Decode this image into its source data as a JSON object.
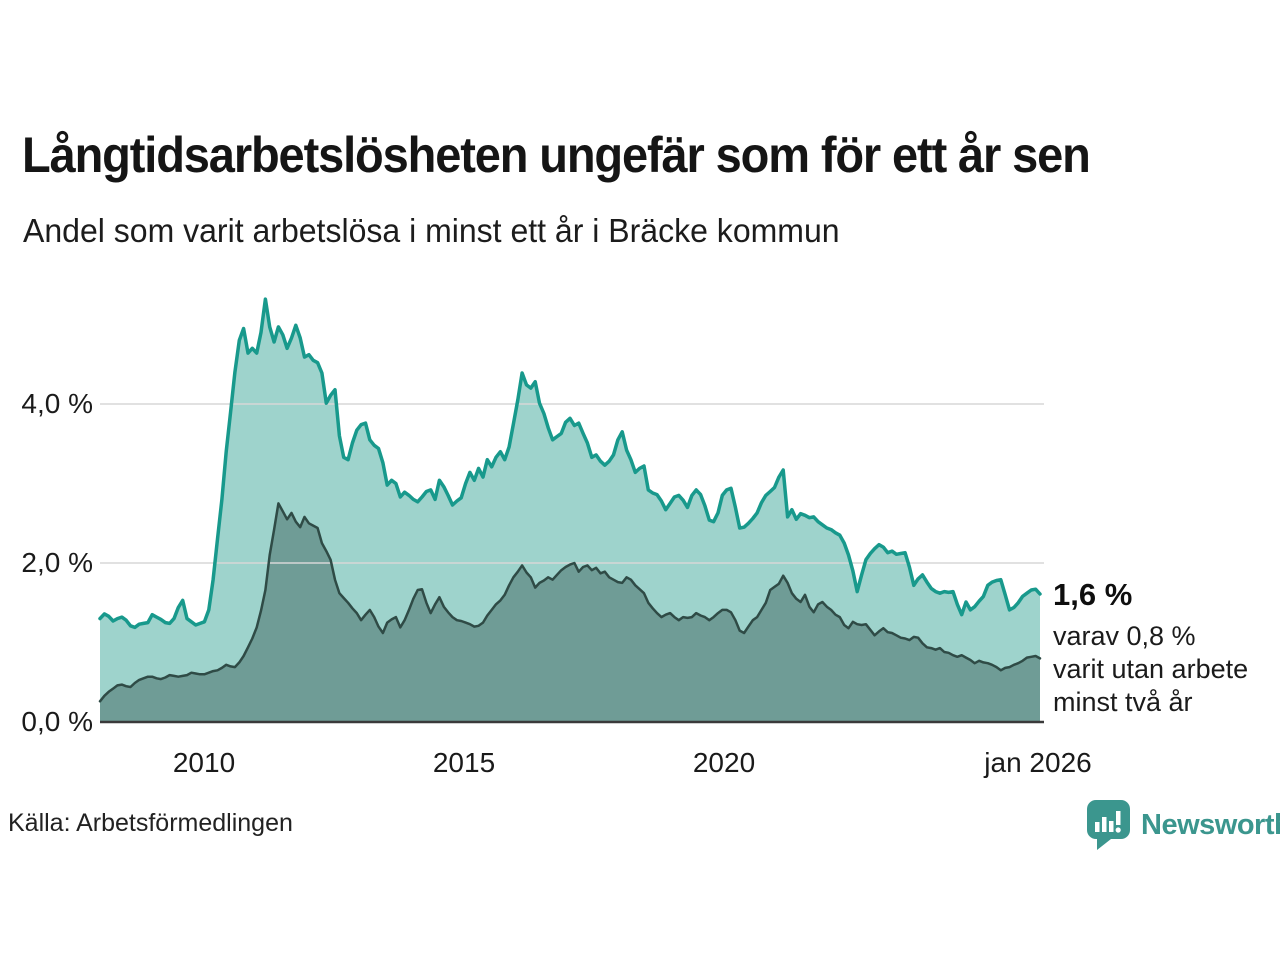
{
  "chart_data": {
    "type": "area",
    "title": "Långtidsarbetslösheten ungefär som för ett år sen",
    "subtitle": "Andel som varit arbetslösa i minst ett år i Bräcke kommun",
    "source": "Källa: Arbetsförmedlingen",
    "x_range": {
      "start": "jan 2008",
      "end": "jan 2026",
      "points_per_year": 12
    },
    "ylim": [
      0,
      5.5
    ],
    "grid": true,
    "y_ticks": [
      {
        "label": "0,0 %",
        "value": 0
      },
      {
        "label": "2,0 %",
        "value": 2
      },
      {
        "label": "4,0 %",
        "value": 4
      }
    ],
    "x_ticks": [
      {
        "label": "2010",
        "year": 2010.0
      },
      {
        "label": "2015",
        "year": 2015.0
      },
      {
        "label": "2020",
        "year": 2020.0
      },
      {
        "label": "jan 2026",
        "year": 2026.04
      }
    ],
    "series": [
      {
        "id": "minst-ett-ar",
        "name": "Andel arbetslösa minst ett år",
        "line_color": "#18998c",
        "fill_color": "#9ed3cc",
        "values": [
          1.3,
          1.36,
          1.33,
          1.27,
          1.3,
          1.32,
          1.28,
          1.21,
          1.19,
          1.23,
          1.24,
          1.25,
          1.35,
          1.32,
          1.29,
          1.25,
          1.24,
          1.3,
          1.44,
          1.53,
          1.3,
          1.26,
          1.22,
          1.24,
          1.26,
          1.41,
          1.79,
          2.3,
          2.8,
          3.4,
          3.9,
          4.4,
          4.8,
          4.95,
          4.64,
          4.7,
          4.64,
          4.9,
          5.32,
          4.97,
          4.78,
          4.97,
          4.87,
          4.7,
          4.83,
          4.99,
          4.83,
          4.59,
          4.62,
          4.55,
          4.52,
          4.39,
          4.01,
          4.11,
          4.18,
          3.6,
          3.33,
          3.3,
          3.51,
          3.67,
          3.74,
          3.76,
          3.55,
          3.48,
          3.44,
          3.26,
          2.98,
          3.04,
          3.0,
          2.83,
          2.89,
          2.85,
          2.8,
          2.77,
          2.83,
          2.9,
          2.92,
          2.8,
          3.04,
          2.96,
          2.85,
          2.73,
          2.78,
          2.82,
          3.0,
          3.14,
          3.04,
          3.19,
          3.08,
          3.3,
          3.21,
          3.33,
          3.4,
          3.3,
          3.46,
          3.75,
          4.05,
          4.39,
          4.24,
          4.2,
          4.28,
          4.01,
          3.88,
          3.7,
          3.55,
          3.59,
          3.63,
          3.77,
          3.82,
          3.73,
          3.76,
          3.63,
          3.51,
          3.33,
          3.36,
          3.28,
          3.23,
          3.28,
          3.36,
          3.55,
          3.65,
          3.42,
          3.3,
          3.14,
          3.19,
          3.22,
          2.92,
          2.88,
          2.86,
          2.78,
          2.67,
          2.75,
          2.83,
          2.85,
          2.79,
          2.7,
          2.85,
          2.92,
          2.86,
          2.72,
          2.54,
          2.52,
          2.63,
          2.85,
          2.92,
          2.94,
          2.7,
          2.44,
          2.45,
          2.5,
          2.56,
          2.63,
          2.76,
          2.85,
          2.9,
          2.95,
          3.08,
          3.17,
          2.58,
          2.67,
          2.55,
          2.62,
          2.6,
          2.57,
          2.58,
          2.52,
          2.48,
          2.44,
          2.42,
          2.38,
          2.35,
          2.25,
          2.1,
          1.9,
          1.64,
          1.85,
          2.04,
          2.12,
          2.18,
          2.23,
          2.2,
          2.13,
          2.15,
          2.11,
          2.12,
          2.13,
          1.95,
          1.72,
          1.8,
          1.85,
          1.76,
          1.68,
          1.64,
          1.62,
          1.64,
          1.63,
          1.64,
          1.48,
          1.35,
          1.51,
          1.41,
          1.45,
          1.52,
          1.58,
          1.72,
          1.76,
          1.78,
          1.79,
          1.6,
          1.41,
          1.44,
          1.5,
          1.58,
          1.62,
          1.66,
          1.67,
          1.61
        ]
      },
      {
        "id": "minst-tva-ar",
        "name": "Andel arbetslösa minst två år",
        "line_color": "#2f4b46",
        "fill_color": "#6f9c96",
        "values": [
          0.26,
          0.33,
          0.38,
          0.42,
          0.46,
          0.47,
          0.45,
          0.44,
          0.49,
          0.53,
          0.55,
          0.57,
          0.57,
          0.55,
          0.54,
          0.56,
          0.59,
          0.58,
          0.57,
          0.58,
          0.59,
          0.62,
          0.61,
          0.6,
          0.6,
          0.62,
          0.64,
          0.65,
          0.68,
          0.72,
          0.7,
          0.69,
          0.75,
          0.83,
          0.94,
          1.05,
          1.19,
          1.4,
          1.66,
          2.1,
          2.42,
          2.75,
          2.65,
          2.55,
          2.63,
          2.52,
          2.45,
          2.58,
          2.5,
          2.47,
          2.44,
          2.25,
          2.15,
          2.04,
          1.79,
          1.62,
          1.56,
          1.5,
          1.43,
          1.37,
          1.28,
          1.35,
          1.41,
          1.32,
          1.2,
          1.12,
          1.25,
          1.29,
          1.32,
          1.19,
          1.28,
          1.41,
          1.55,
          1.66,
          1.67,
          1.5,
          1.37,
          1.48,
          1.57,
          1.45,
          1.38,
          1.32,
          1.28,
          1.27,
          1.25,
          1.23,
          1.2,
          1.21,
          1.25,
          1.34,
          1.41,
          1.48,
          1.53,
          1.6,
          1.72,
          1.82,
          1.89,
          1.97,
          1.88,
          1.82,
          1.69,
          1.75,
          1.78,
          1.82,
          1.79,
          1.85,
          1.91,
          1.95,
          1.98,
          2.0,
          1.89,
          1.95,
          1.97,
          1.91,
          1.94,
          1.87,
          1.89,
          1.82,
          1.79,
          1.76,
          1.75,
          1.82,
          1.79,
          1.72,
          1.67,
          1.62,
          1.5,
          1.43,
          1.37,
          1.32,
          1.35,
          1.37,
          1.32,
          1.28,
          1.32,
          1.31,
          1.32,
          1.37,
          1.34,
          1.32,
          1.28,
          1.32,
          1.37,
          1.41,
          1.41,
          1.38,
          1.28,
          1.15,
          1.12,
          1.2,
          1.28,
          1.32,
          1.41,
          1.5,
          1.66,
          1.7,
          1.74,
          1.84,
          1.75,
          1.62,
          1.55,
          1.51,
          1.6,
          1.45,
          1.38,
          1.48,
          1.51,
          1.45,
          1.41,
          1.35,
          1.32,
          1.22,
          1.18,
          1.26,
          1.23,
          1.22,
          1.23,
          1.16,
          1.09,
          1.14,
          1.18,
          1.13,
          1.12,
          1.09,
          1.06,
          1.05,
          1.03,
          1.07,
          1.06,
          0.99,
          0.94,
          0.93,
          0.91,
          0.93,
          0.88,
          0.87,
          0.84,
          0.82,
          0.84,
          0.81,
          0.78,
          0.74,
          0.77,
          0.75,
          0.74,
          0.72,
          0.69,
          0.65,
          0.68,
          0.69,
          0.72,
          0.74,
          0.77,
          0.81,
          0.82,
          0.83,
          0.8
        ]
      }
    ],
    "annotation": {
      "value_label": "1,6 %",
      "sub_lines": [
        "varav 0,8 %",
        "varit utan arbete",
        "minst två år"
      ]
    },
    "colors": {
      "grid": "#d7d7d7",
      "axis": "#3a3a3a",
      "brand_teal": "#3b968e"
    }
  },
  "brand": {
    "name": "Newsworthy"
  }
}
